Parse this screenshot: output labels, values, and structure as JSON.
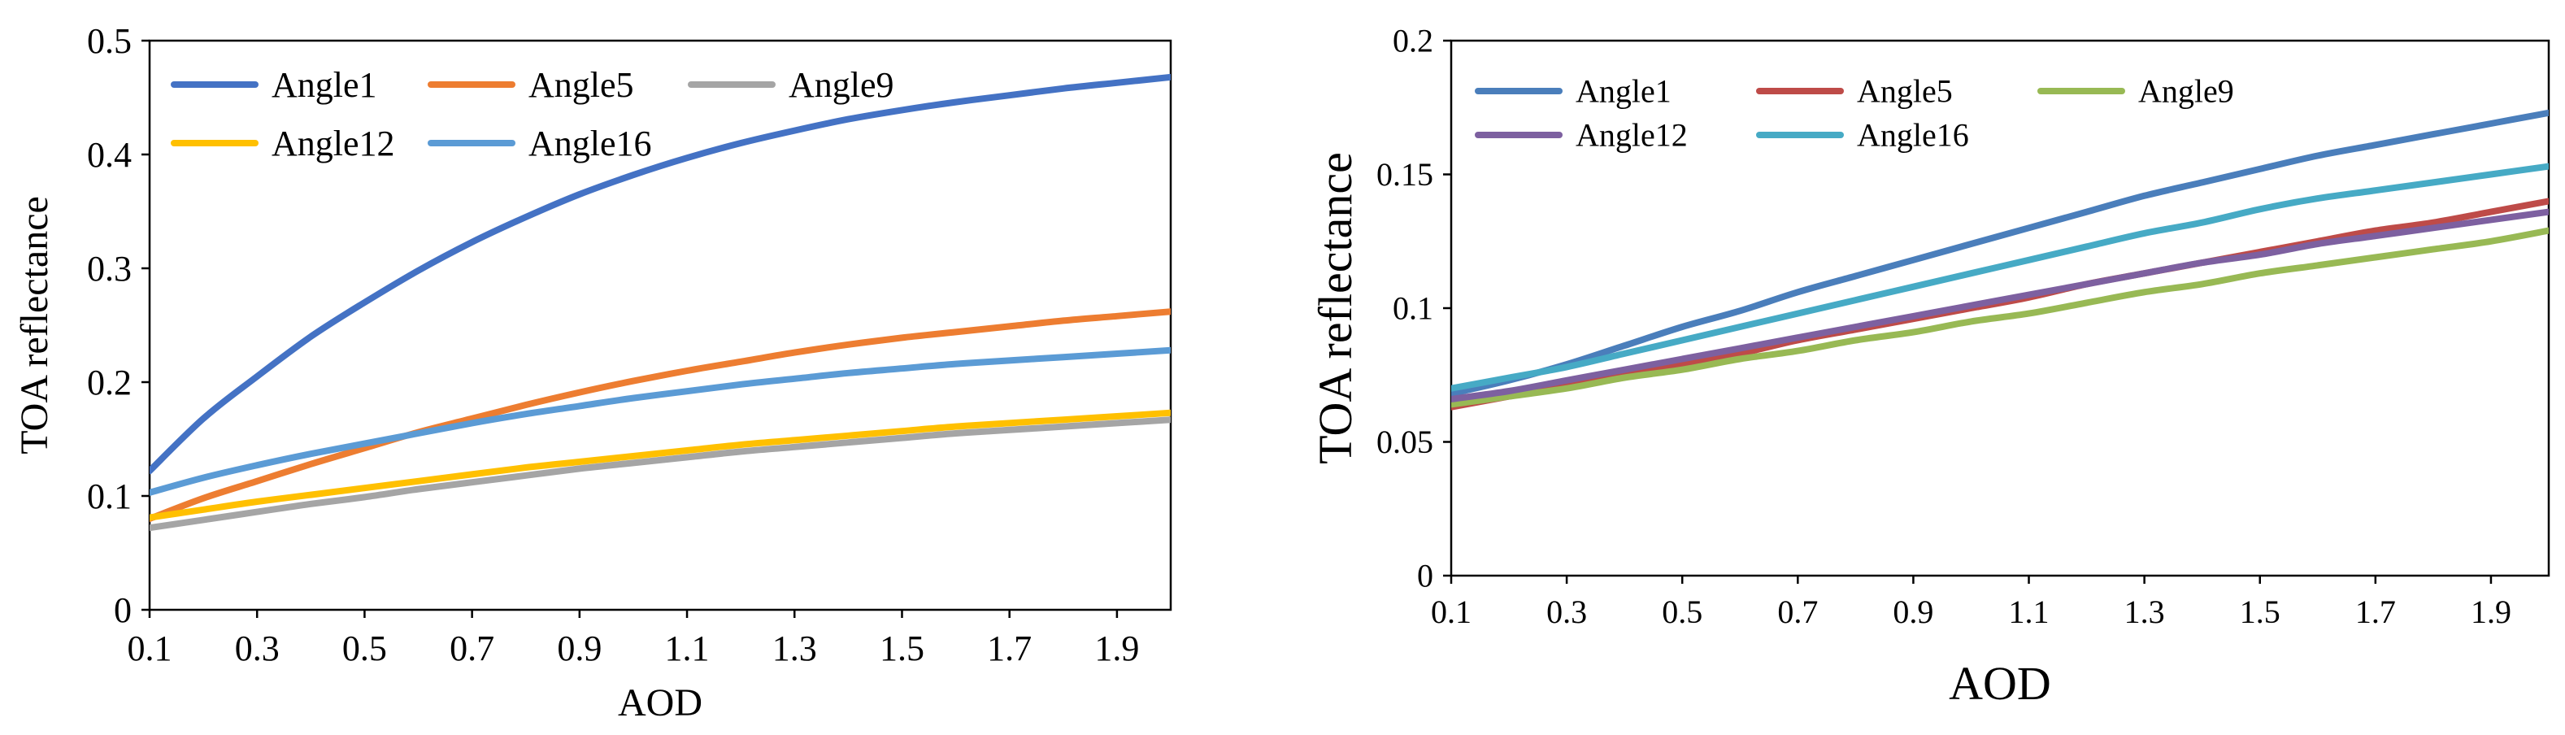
{
  "chart_data": [
    {
      "type": "line",
      "title": "",
      "xlabel": "AOD",
      "ylabel": "TOA reflectance",
      "xlim": [
        0.1,
        2.0
      ],
      "ylim": [
        0,
        0.5
      ],
      "xticks": [
        "0.1",
        "0.3",
        "0.5",
        "0.7",
        "0.9",
        "1.1",
        "1.3",
        "1.5",
        "1.7",
        "1.9"
      ],
      "xtick_values": [
        0.1,
        0.3,
        0.5,
        0.7,
        0.9,
        1.1,
        1.3,
        1.5,
        1.7,
        1.9
      ],
      "yticks": [
        "0",
        "0.1",
        "0.2",
        "0.3",
        "0.4",
        "0.5"
      ],
      "ytick_values": [
        0,
        0.1,
        0.2,
        0.3,
        0.4,
        0.5
      ],
      "grid": false,
      "legend_position": "top-left",
      "x": [
        0.1,
        0.2,
        0.3,
        0.4,
        0.5,
        0.6,
        0.7,
        0.8,
        0.9,
        1.0,
        1.1,
        1.2,
        1.3,
        1.4,
        1.5,
        1.6,
        1.7,
        1.8,
        1.9,
        2.0
      ],
      "series": [
        {
          "name": "Angle1",
          "color": "#4472C4",
          "values": [
            0.122,
            0.168,
            0.205,
            0.24,
            0.27,
            0.298,
            0.323,
            0.345,
            0.365,
            0.382,
            0.397,
            0.41,
            0.421,
            0.431,
            0.439,
            0.446,
            0.452,
            0.458,
            0.463,
            0.468
          ]
        },
        {
          "name": "Angle5",
          "color": "#ED7D31",
          "values": [
            0.08,
            0.098,
            0.113,
            0.128,
            0.142,
            0.156,
            0.168,
            0.18,
            0.191,
            0.201,
            0.21,
            0.218,
            0.226,
            0.233,
            0.239,
            0.244,
            0.249,
            0.254,
            0.258,
            0.262
          ]
        },
        {
          "name": "Angle9",
          "color": "#A5A5A5",
          "values": [
            0.072,
            0.079,
            0.086,
            0.093,
            0.099,
            0.106,
            0.112,
            0.118,
            0.124,
            0.129,
            0.134,
            0.139,
            0.143,
            0.147,
            0.151,
            0.155,
            0.158,
            0.161,
            0.164,
            0.167
          ]
        },
        {
          "name": "Angle12",
          "color": "#FFC000",
          "values": [
            0.081,
            0.088,
            0.095,
            0.101,
            0.107,
            0.113,
            0.119,
            0.125,
            0.13,
            0.135,
            0.14,
            0.145,
            0.149,
            0.153,
            0.157,
            0.161,
            0.164,
            0.167,
            0.17,
            0.173
          ]
        },
        {
          "name": "Angle16",
          "color": "#5B9BD5",
          "values": [
            0.103,
            0.116,
            0.127,
            0.137,
            0.146,
            0.155,
            0.164,
            0.172,
            0.179,
            0.186,
            0.192,
            0.198,
            0.203,
            0.208,
            0.212,
            0.216,
            0.219,
            0.222,
            0.225,
            0.228
          ]
        }
      ]
    },
    {
      "type": "line",
      "title": "",
      "xlabel": "AOD",
      "ylabel": "TOA reflectance",
      "xlim": [
        0.1,
        2.0
      ],
      "ylim": [
        0,
        0.2
      ],
      "xticks": [
        "0.1",
        "0.3",
        "0.5",
        "0.7",
        "0.9",
        "1.1",
        "1.3",
        "1.5",
        "1.7",
        "1.9"
      ],
      "xtick_values": [
        0.1,
        0.3,
        0.5,
        0.7,
        0.9,
        1.1,
        1.3,
        1.5,
        1.7,
        1.9
      ],
      "yticks": [
        "0",
        "0.05",
        "0.1",
        "0.15",
        "0.2"
      ],
      "ytick_values": [
        0,
        0.05,
        0.1,
        0.15,
        0.2
      ],
      "grid": false,
      "legend_position": "top-left",
      "x": [
        0.1,
        0.2,
        0.3,
        0.4,
        0.5,
        0.6,
        0.7,
        0.8,
        0.9,
        1.0,
        1.1,
        1.2,
        1.3,
        1.4,
        1.5,
        1.6,
        1.7,
        1.8,
        1.9,
        2.0
      ],
      "series": [
        {
          "name": "Angle1",
          "color": "#4A7EBB",
          "values": [
            0.068,
            0.073,
            0.079,
            0.086,
            0.093,
            0.099,
            0.106,
            0.112,
            0.118,
            0.124,
            0.13,
            0.136,
            0.142,
            0.147,
            0.152,
            0.157,
            0.161,
            0.165,
            0.169,
            0.173
          ]
        },
        {
          "name": "Angle5",
          "color": "#BE4B48",
          "values": [
            0.063,
            0.067,
            0.071,
            0.075,
            0.079,
            0.083,
            0.088,
            0.092,
            0.096,
            0.1,
            0.104,
            0.109,
            0.113,
            0.117,
            0.121,
            0.125,
            0.129,
            0.132,
            0.136,
            0.14
          ]
        },
        {
          "name": "Angle9",
          "color": "#98B954",
          "values": [
            0.064,
            0.067,
            0.07,
            0.074,
            0.077,
            0.081,
            0.084,
            0.088,
            0.091,
            0.095,
            0.098,
            0.102,
            0.106,
            0.109,
            0.113,
            0.116,
            0.119,
            0.122,
            0.125,
            0.129
          ]
        },
        {
          "name": "Angle12",
          "color": "#7D60A0",
          "values": [
            0.066,
            0.069,
            0.073,
            0.077,
            0.081,
            0.085,
            0.089,
            0.093,
            0.097,
            0.101,
            0.105,
            0.109,
            0.113,
            0.117,
            0.12,
            0.124,
            0.127,
            0.13,
            0.133,
            0.136
          ]
        },
        {
          "name": "Angle16",
          "color": "#46AAC5",
          "values": [
            0.07,
            0.074,
            0.078,
            0.083,
            0.088,
            0.093,
            0.098,
            0.103,
            0.108,
            0.113,
            0.118,
            0.123,
            0.128,
            0.132,
            0.137,
            0.141,
            0.144,
            0.147,
            0.15,
            0.153
          ]
        }
      ]
    }
  ]
}
